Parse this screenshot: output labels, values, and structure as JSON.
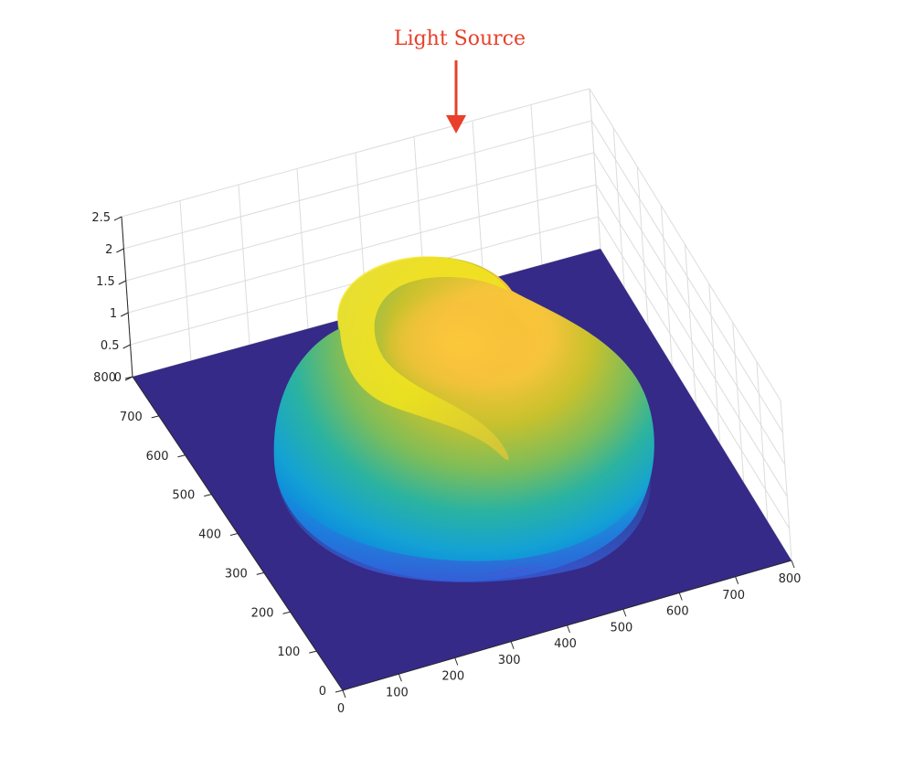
{
  "chart_data": {
    "type": "surface",
    "title": "",
    "xlabel": "",
    "ylabel": "",
    "zlabel": "",
    "xlim": [
      0,
      800
    ],
    "ylim": [
      0,
      800
    ],
    "zlim": [
      0,
      2.5
    ],
    "x_ticks": [
      "0",
      "100",
      "200",
      "300",
      "400",
      "500",
      "600",
      "700",
      "800"
    ],
    "y_ticks": [
      "0",
      "100",
      "200",
      "300",
      "400",
      "500",
      "600",
      "700",
      "800"
    ],
    "z_ticks": [
      "0",
      "0.5",
      "1",
      "1.5",
      "2",
      "2.5"
    ],
    "colormap": "parula",
    "grid": true,
    "surface_peak_z": 2.1,
    "annotation": {
      "text": "Light Source",
      "color": "#e8402a"
    },
    "colors": {
      "floor": "#352a87",
      "grid": "#dcdcdc",
      "axis": "#262626"
    }
  }
}
